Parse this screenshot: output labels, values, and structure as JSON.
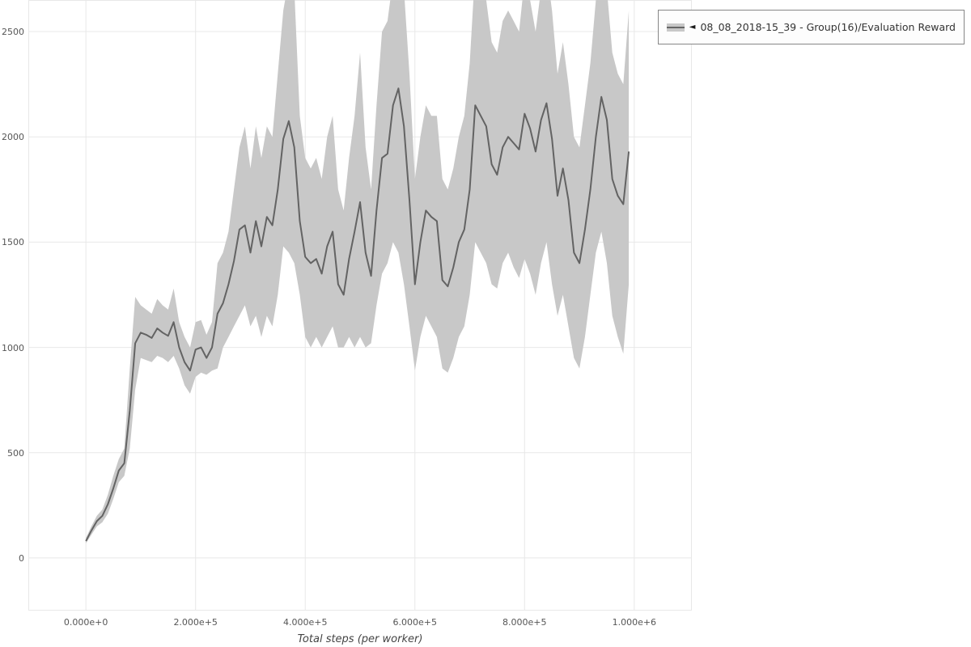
{
  "legend": {
    "marker": "◄",
    "label": "08_08_2018-15_39 - Group(16)/Evaluation Reward"
  },
  "chart_data": {
    "type": "line",
    "title": "",
    "xlabel": "Total steps (per worker)",
    "ylabel": "",
    "legend_position": "top-right",
    "grid": true,
    "xlim": [
      -105000,
      1105000
    ],
    "ylim": [
      -250,
      2650
    ],
    "x_start": 0,
    "x_step": 10000,
    "xticks": {
      "values": [
        0,
        200000,
        400000,
        600000,
        800000,
        1000000
      ],
      "labels": [
        "0.000e+0",
        "2.000e+5",
        "4.000e+5",
        "6.000e+5",
        "8.000e+5",
        "1.000e+6"
      ]
    },
    "yticks": {
      "values": [
        0,
        500,
        1000,
        1500,
        2000,
        2500
      ],
      "labels": [
        "0",
        "500",
        "1000",
        "1500",
        "2000",
        "2500"
      ]
    },
    "colors": {
      "line": "#636363",
      "band": "#c8c8c8",
      "grid": "#e8e8e8",
      "tick_text": "#555555"
    },
    "series": [
      {
        "name": "08_08_2018-15_39 - Group(16)/Evaluation Reward",
        "mean": [
          80,
          130,
          175,
          200,
          255,
          330,
          415,
          450,
          700,
          1020,
          1070,
          1060,
          1045,
          1090,
          1070,
          1055,
          1120,
          1000,
          930,
          890,
          990,
          1000,
          950,
          1000,
          1160,
          1210,
          1300,
          1410,
          1560,
          1580,
          1450,
          1600,
          1480,
          1620,
          1580,
          1750,
          1990,
          2075,
          1950,
          1600,
          1430,
          1400,
          1420,
          1350,
          1480,
          1550,
          1300,
          1250,
          1420,
          1550,
          1690,
          1450,
          1340,
          1650,
          1900,
          1920,
          2150,
          2230,
          2050,
          1700,
          1300,
          1500,
          1650,
          1620,
          1600,
          1320,
          1290,
          1380,
          1500,
          1560,
          1750,
          2150,
          2100,
          2050,
          1870,
          1820,
          1950,
          2000,
          1970,
          1940,
          2110,
          2040,
          1930,
          2080,
          2160,
          1990,
          1720,
          1850,
          1700,
          1450,
          1400,
          1560,
          1750,
          2000,
          2190,
          2080,
          1800,
          1720,
          1680,
          1930
        ],
        "lo": [
          70,
          110,
          150,
          170,
          210,
          280,
          360,
          390,
          520,
          800,
          950,
          940,
          930,
          960,
          950,
          930,
          960,
          900,
          820,
          780,
          860,
          880,
          870,
          890,
          900,
          1000,
          1050,
          1100,
          1150,
          1200,
          1100,
          1150,
          1050,
          1150,
          1100,
          1250,
          1480,
          1450,
          1400,
          1250,
          1050,
          1000,
          1050,
          1000,
          1050,
          1100,
          1000,
          1000,
          1050,
          1000,
          1050,
          1000,
          1020,
          1200,
          1350,
          1400,
          1500,
          1450,
          1300,
          1100,
          890,
          1050,
          1150,
          1100,
          1050,
          900,
          880,
          950,
          1050,
          1100,
          1250,
          1500,
          1450,
          1400,
          1300,
          1280,
          1400,
          1450,
          1380,
          1330,
          1420,
          1350,
          1250,
          1400,
          1500,
          1300,
          1150,
          1250,
          1100,
          950,
          900,
          1050,
          1250,
          1450,
          1550,
          1400,
          1150,
          1050,
          970,
          1300
        ],
        "hi": [
          95,
          150,
          200,
          230,
          300,
          390,
          470,
          520,
          900,
          1240,
          1200,
          1180,
          1160,
          1230,
          1200,
          1180,
          1280,
          1120,
          1050,
          1000,
          1120,
          1130,
          1060,
          1120,
          1400,
          1450,
          1550,
          1750,
          1950,
          2050,
          1850,
          2050,
          1900,
          2050,
          2000,
          2300,
          2600,
          2750,
          2700,
          2100,
          1900,
          1850,
          1900,
          1800,
          2000,
          2100,
          1750,
          1650,
          1900,
          2100,
          2400,
          1950,
          1750,
          2150,
          2500,
          2550,
          2750,
          2800,
          2700,
          2300,
          1800,
          2000,
          2150,
          2100,
          2100,
          1800,
          1750,
          1850,
          2000,
          2100,
          2350,
          2800,
          2700,
          2650,
          2450,
          2400,
          2550,
          2600,
          2550,
          2500,
          2750,
          2650,
          2500,
          2700,
          2800,
          2600,
          2300,
          2450,
          2250,
          2000,
          1950,
          2150,
          2350,
          2650,
          2800,
          2700,
          2400,
          2300,
          2250,
          2600
        ]
      }
    ]
  }
}
